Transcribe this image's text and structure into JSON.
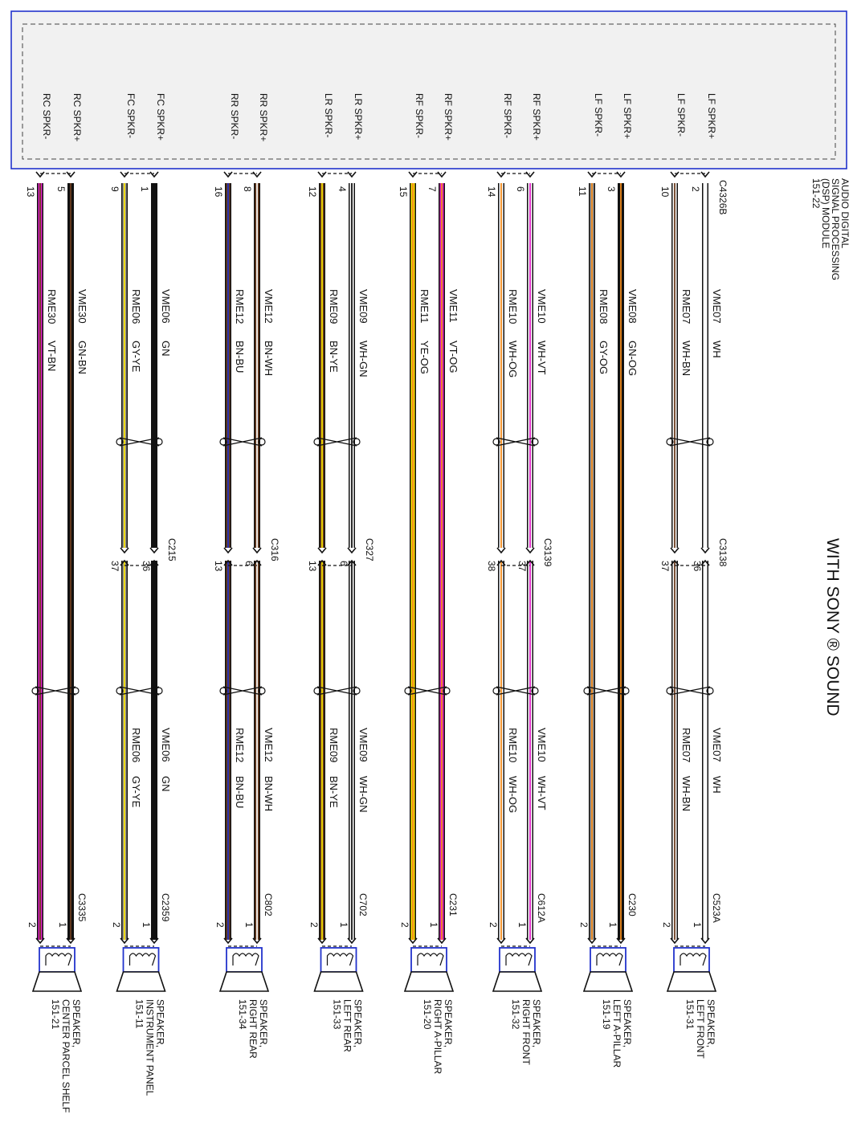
{
  "title": "WITH SONY ® SOUND",
  "module": {
    "label_lines": [
      "AUDIO DIGITAL",
      "SIGNAL PROCESSING",
      "(DSP) MODULE",
      "151-22"
    ],
    "connector": "C4326B"
  },
  "colors": {
    "WH": "#ffffff",
    "BN": "#6b3d1f",
    "GN": "#111111",
    "OG": "#f08a1c",
    "VT": "#e020c8",
    "YE": "#f5e000",
    "GY": "#999999",
    "BU": "#2030c0",
    "frame": "#2233cc",
    "panel_bg": "#f1f1f1",
    "line": "#111111"
  },
  "channels": [
    {
      "speaker_label": [
        "SPEAKER,",
        "LEFT FRONT",
        "151-31"
      ],
      "spkr_pos": {
        "pin_label": "LF SPKR+",
        "module_pin": "2",
        "circuit": "VME07",
        "color": "WH",
        "inline_pin": "36",
        "end_pin": "1"
      },
      "spkr_neg": {
        "pin_label": "LF SPKR-",
        "module_pin": "10",
        "circuit": "RME07",
        "color": "WH-BN",
        "inline_pin": "37",
        "end_pin": "2"
      },
      "inline_connector": "C3138",
      "end_connector": "C523A"
    },
    {
      "speaker_label": [
        "SPEAKER,",
        "LEFT A-PILLAR",
        "151-19"
      ],
      "spkr_pos": {
        "pin_label": "LF SPKR+",
        "module_pin": "3",
        "circuit": "VME08",
        "color": "GN-OG",
        "end_pin": "1"
      },
      "spkr_neg": {
        "pin_label": "LF SPKR-",
        "module_pin": "11",
        "circuit": "RME08",
        "color": "GY-OG",
        "end_pin": "2"
      },
      "end_connector": "C230"
    },
    {
      "speaker_label": [
        "SPEAKER,",
        "RIGHT FRONT",
        "151-32"
      ],
      "spkr_pos": {
        "pin_label": "RF SPKR+",
        "module_pin": "6",
        "circuit": "VME10",
        "color": "WH-VT",
        "inline_pin": "37",
        "end_pin": "1"
      },
      "spkr_neg": {
        "pin_label": "RF SPKR-",
        "module_pin": "14",
        "circuit": "RME10",
        "color": "WH-OG",
        "inline_pin": "38",
        "end_pin": "2"
      },
      "inline_connector": "C3139",
      "end_connector": "C612A"
    },
    {
      "speaker_label": [
        "SPEAKER,",
        "RIGHT A-PILLAR",
        "151-20"
      ],
      "spkr_pos": {
        "pin_label": "RF SPKR+",
        "module_pin": "7",
        "circuit": "VME11",
        "color": "VT-OG",
        "end_pin": "1"
      },
      "spkr_neg": {
        "pin_label": "RF SPKR-",
        "module_pin": "15",
        "circuit": "RME11",
        "color": "YE-OG",
        "end_pin": "2"
      },
      "end_connector": "C231"
    },
    {
      "speaker_label": [
        "SPEAKER,",
        "LEFT REAR",
        "151-33"
      ],
      "spkr_pos": {
        "pin_label": "LR SPKR+",
        "module_pin": "4",
        "circuit": "VME09",
        "color": "WH-GN",
        "inline_pin": "6",
        "end_pin": "1"
      },
      "spkr_neg": {
        "pin_label": "LR SPKR-",
        "module_pin": "12",
        "circuit": "RME09",
        "color": "BN-YE",
        "inline_pin": "13",
        "end_pin": "2"
      },
      "inline_connector": "C327",
      "end_connector": "C702"
    },
    {
      "speaker_label": [
        "SPEAKER,",
        "RIGHT REAR",
        "151-34"
      ],
      "spkr_pos": {
        "pin_label": "RR SPKR+",
        "module_pin": "8",
        "circuit": "VME12",
        "color": "BN-WH",
        "inline_pin": "6",
        "end_pin": "1"
      },
      "spkr_neg": {
        "pin_label": "RR SPKR-",
        "module_pin": "16",
        "circuit": "RME12",
        "color": "BN-BU",
        "inline_pin": "13",
        "end_pin": "2"
      },
      "inline_connector": "C316",
      "end_connector": "C802"
    },
    {
      "speaker_label": [
        "SPEAKER,",
        "INSTRUMENT PANEL",
        "151-11"
      ],
      "spkr_pos": {
        "pin_label": "FC SPKR+",
        "module_pin": "1",
        "circuit": "VME06",
        "color": "GN",
        "inline_pin": "36",
        "end_pin": "1"
      },
      "spkr_neg": {
        "pin_label": "FC SPKR-",
        "module_pin": "9",
        "circuit": "RME06",
        "color": "GY-YE",
        "inline_pin": "37",
        "end_pin": "2"
      },
      "inline_connector": "C215",
      "end_connector": "C2359"
    },
    {
      "speaker_label": [
        "SPEAKER,",
        "CENTER PARCEL SHELF",
        "151-21"
      ],
      "spkr_pos": {
        "pin_label": "RC SPKR+",
        "module_pin": "5",
        "circuit": "VME30",
        "color": "GN-BN",
        "end_pin": "1"
      },
      "spkr_neg": {
        "pin_label": "RC SPKR-",
        "module_pin": "13",
        "circuit": "RME30",
        "color": "VT-BN",
        "end_pin": "2"
      },
      "end_connector": "C3335"
    }
  ]
}
